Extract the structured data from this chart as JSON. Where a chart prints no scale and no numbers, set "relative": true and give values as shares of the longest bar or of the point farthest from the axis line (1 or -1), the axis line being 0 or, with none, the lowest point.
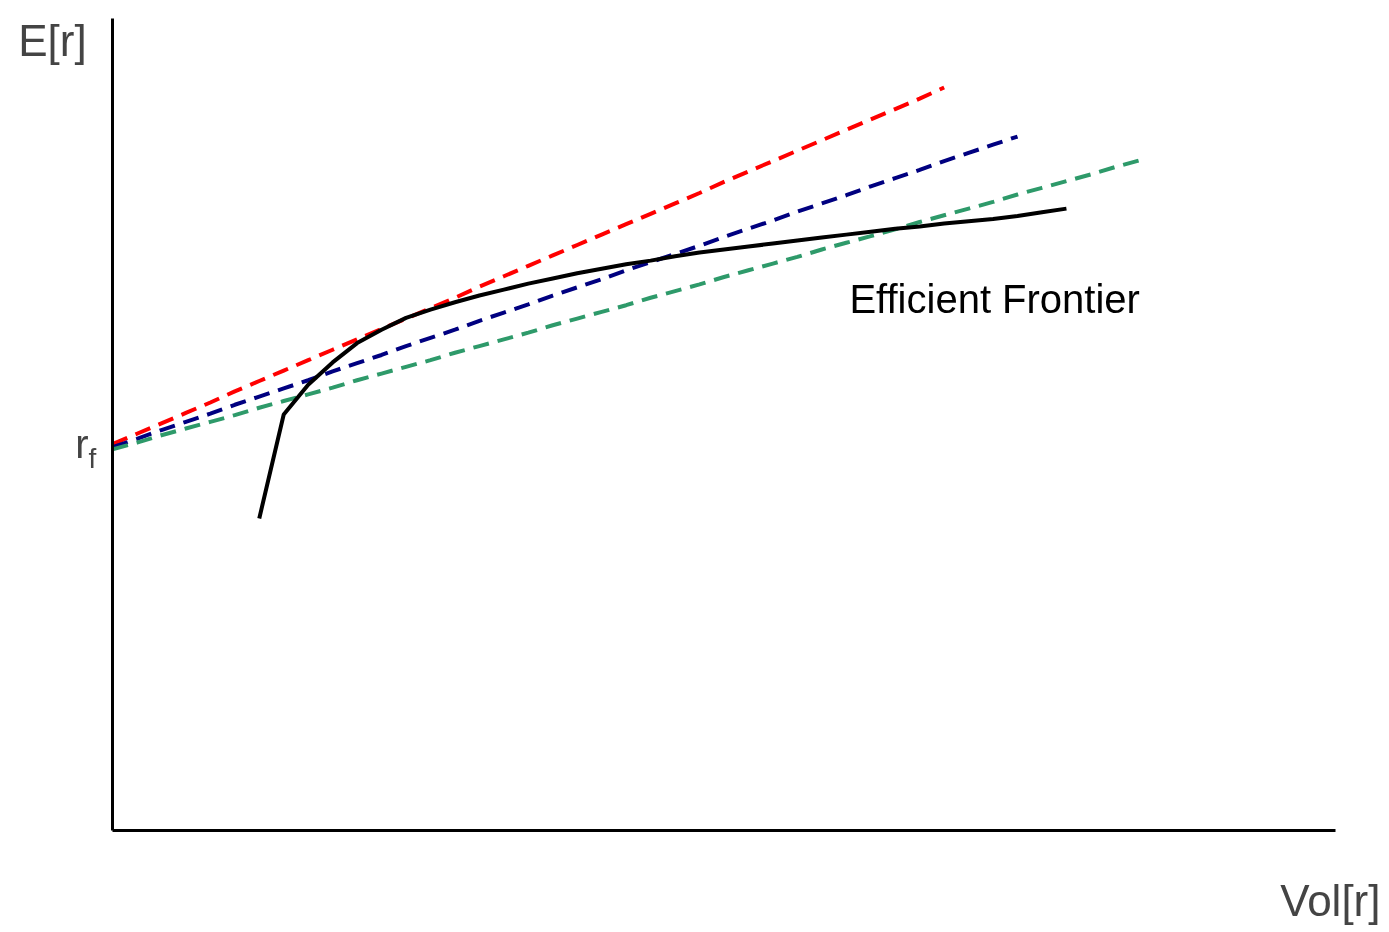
{
  "chart_data": {
    "type": "line",
    "relative": true,
    "xlabel": "Vol[r]",
    "ylabel": "E[r]",
    "line_style": "dashed",
    "categories": [
      null,
      null,
      null,
      null,
      null,
      null,
      null,
      null,
      null,
      null,
      null,
      null,
      null,
      null,
      null,
      null,
      null,
      null,
      null,
      null,
      null,
      null,
      null,
      null,
      null,
      null,
      null,
      null,
      null,
      null,
      null,
      null,
      null,
      null,
      null,
      null,
      null,
      null,
      null,
      null,
      null,
      null,
      null,
      null,
      null,
      null,
      null,
      null,
      null,
      null,
      null
    ],
    "annotations": [
      "r$_{f}$"
    ],
    "series": [
      {
        "color": "#ff0000",
        "values": [
          0.52,
          0.534,
          0.548,
          0.562,
          0.576,
          0.591,
          0.605,
          0.619,
          0.633,
          0.647,
          0.661,
          0.675,
          0.689,
          0.703,
          0.717,
          0.732,
          0.746,
          0.76,
          0.774,
          0.788,
          0.802,
          0.816,
          0.83,
          0.844,
          0.858,
          0.873,
          0.887,
          0.901,
          0.915,
          0.929,
          0.943,
          0.957,
          0.971,
          0.985,
          1.0,
          null,
          null,
          null,
          null,
          null,
          null,
          null,
          null,
          null,
          null,
          null,
          null,
          null,
          null,
          null,
          null
        ]
      },
      {
        "color": "#000080",
        "values": [
          0.516,
          0.527,
          0.539,
          0.55,
          0.561,
          0.573,
          0.584,
          0.595,
          0.606,
          0.618,
          0.629,
          0.64,
          0.652,
          0.663,
          0.674,
          0.686,
          0.697,
          0.708,
          0.72,
          0.731,
          0.742,
          0.754,
          0.765,
          0.776,
          0.787,
          0.799,
          0.81,
          0.821,
          0.833,
          0.844,
          0.855,
          0.867,
          0.878,
          0.889,
          0.901,
          0.912,
          0.923,
          0.934,
          null,
          null,
          null,
          null,
          null,
          null,
          null,
          null,
          null,
          null,
          null,
          null,
          null
        ]
      },
      {
        "color": "#2e9a6a",
        "values": [
          0.513,
          0.522,
          0.532,
          0.541,
          0.55,
          0.559,
          0.569,
          0.578,
          0.587,
          0.596,
          0.606,
          0.615,
          0.624,
          0.633,
          0.643,
          0.652,
          0.661,
          0.67,
          0.68,
          0.689,
          0.698,
          0.707,
          0.717,
          0.726,
          0.735,
          0.745,
          0.754,
          0.763,
          0.772,
          0.782,
          0.791,
          0.8,
          0.809,
          0.819,
          0.828,
          0.837,
          0.846,
          0.856,
          0.865,
          0.874,
          0.883,
          0.893,
          0.902,
          null,
          null,
          null,
          null,
          null,
          null,
          null,
          null
        ]
      },
      {
        "name": "Efficient Frontier",
        "color": "#000000",
        "line_style": "solid",
        "values": [
          null,
          null,
          null,
          null,
          null,
          null,
          0.42,
          0.56,
          0.6,
          0.63,
          0.656,
          0.674,
          0.69,
          0.701,
          0.711,
          0.72,
          0.728,
          0.736,
          0.743,
          0.75,
          0.756,
          0.762,
          0.767,
          0.773,
          0.778,
          0.782,
          0.786,
          0.79,
          0.794,
          0.798,
          0.802,
          0.806,
          0.81,
          0.813,
          0.817,
          0.82,
          0.823,
          0.827,
          0.832,
          0.837,
          null,
          null,
          null,
          null,
          null,
          null,
          null,
          null,
          null,
          null,
          null
        ]
      }
    ]
  }
}
